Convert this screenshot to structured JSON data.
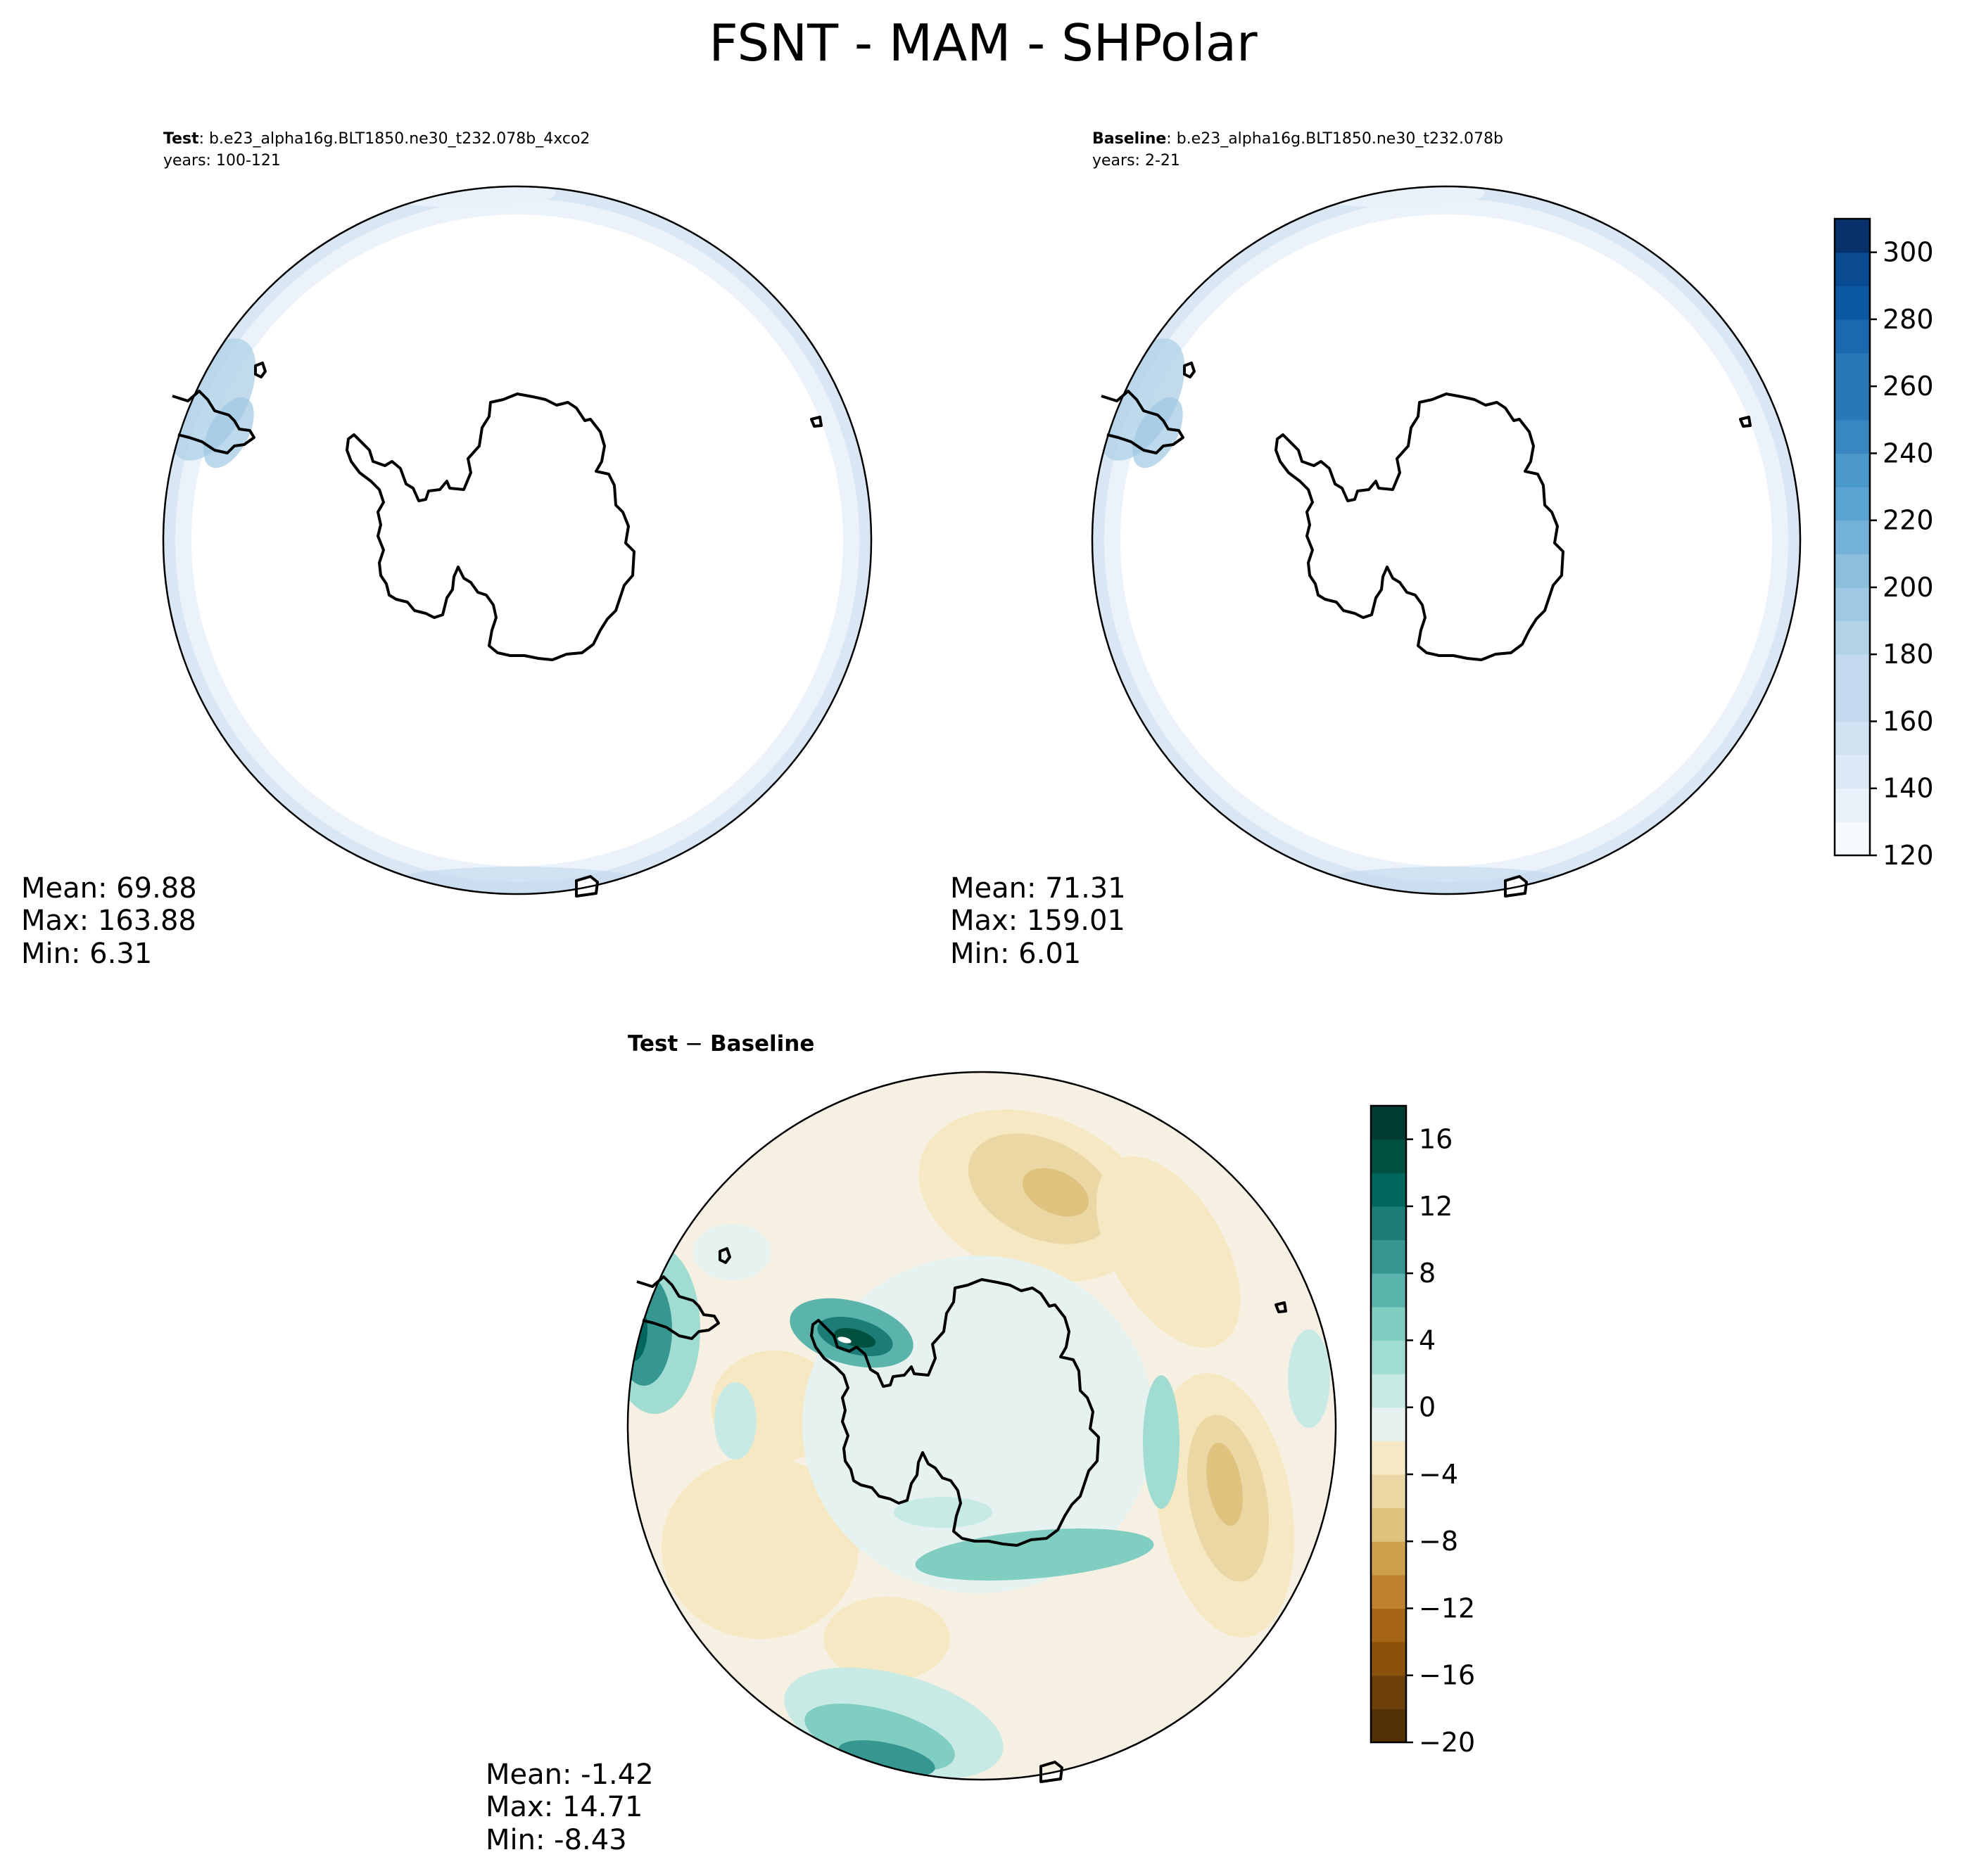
{
  "figure": {
    "title": "FSNT - MAM - SHPolar"
  },
  "colors": {
    "blues": [
      "#f7fbff",
      "#e9f2fb",
      "#dde9f6",
      "#d0e1f2",
      "#c3d9ee",
      "#b2d2e8",
      "#a0c8e2",
      "#8bbfdc",
      "#74b1d8",
      "#5ba3d0",
      "#4a97c9",
      "#3887c0",
      "#2878b8",
      "#1a68ae",
      "#0c57a2",
      "#0a4a90",
      "#08306b"
    ],
    "brbg": [
      "#543005",
      "#6e4009",
      "#8c510a",
      "#a66417",
      "#bf812d",
      "#cfa04c",
      "#dfc27d",
      "#ead7a4",
      "#f6e8c3",
      "#f5f0e1",
      "#e6f2ef",
      "#c7eae5",
      "#a0dcd2",
      "#80cdc1",
      "#5ab4ac",
      "#35978f",
      "#1b7d76",
      "#01665e",
      "#00503f",
      "#003c30"
    ],
    "outline": "#000000"
  },
  "chart_data": [
    {
      "type": "heatmap",
      "panel": "test",
      "label_bold": "Test",
      "label_rest": ": b.e23_alpha16g.BLT1850.ne30_t232.078b_4xco2",
      "years": "years: 100-121",
      "projection": "south polar stereographic",
      "stats": {
        "mean": "Mean: 69.88",
        "max": "Max: 163.88",
        "min": "Min:  6.31"
      }
    },
    {
      "type": "heatmap",
      "panel": "baseline",
      "label_bold": "Baseline",
      "label_rest": ": b.e23_alpha16g.BLT1850.ne30_t232.078b",
      "years": "years: 2-21",
      "projection": "south polar stereographic",
      "stats": {
        "mean": "Mean: 71.31",
        "max": "Max: 159.01",
        "min": "Min:  6.01"
      },
      "colorbar": {
        "cmap": "Blues",
        "range": [
          120,
          310
        ],
        "levels": [
          120,
          130,
          140,
          150,
          160,
          170,
          180,
          190,
          200,
          210,
          220,
          230,
          240,
          250,
          260,
          270,
          280,
          290,
          300,
          310
        ],
        "ticks": [
          120,
          140,
          160,
          180,
          200,
          220,
          240,
          260,
          280,
          300
        ],
        "tick_labels": [
          "120",
          "140",
          "160",
          "180",
          "200",
          "220",
          "240",
          "260",
          "280",
          "300"
        ]
      }
    },
    {
      "type": "heatmap",
      "panel": "difference",
      "label_a": "Test",
      "label_op": " − ",
      "label_b": "Baseline",
      "projection": "south polar stereographic",
      "stats": {
        "mean": "Mean: -1.42",
        "max": "Max: 14.71",
        "min": "Min: -8.43"
      },
      "colorbar": {
        "cmap": "BrBG",
        "range": [
          -20,
          18
        ],
        "levels": [
          -20,
          -18,
          -16,
          -14,
          -12,
          -10,
          -8,
          -6,
          -4,
          -2,
          0,
          2,
          4,
          6,
          8,
          10,
          12,
          14,
          16,
          18
        ],
        "ticks": [
          -20,
          -16,
          -12,
          -8,
          -4,
          0,
          4,
          8,
          12,
          16
        ],
        "tick_labels": [
          "−20",
          "−16",
          "−12",
          "−8",
          "−4",
          "0",
          "4",
          "8",
          "12",
          "16"
        ]
      }
    }
  ]
}
